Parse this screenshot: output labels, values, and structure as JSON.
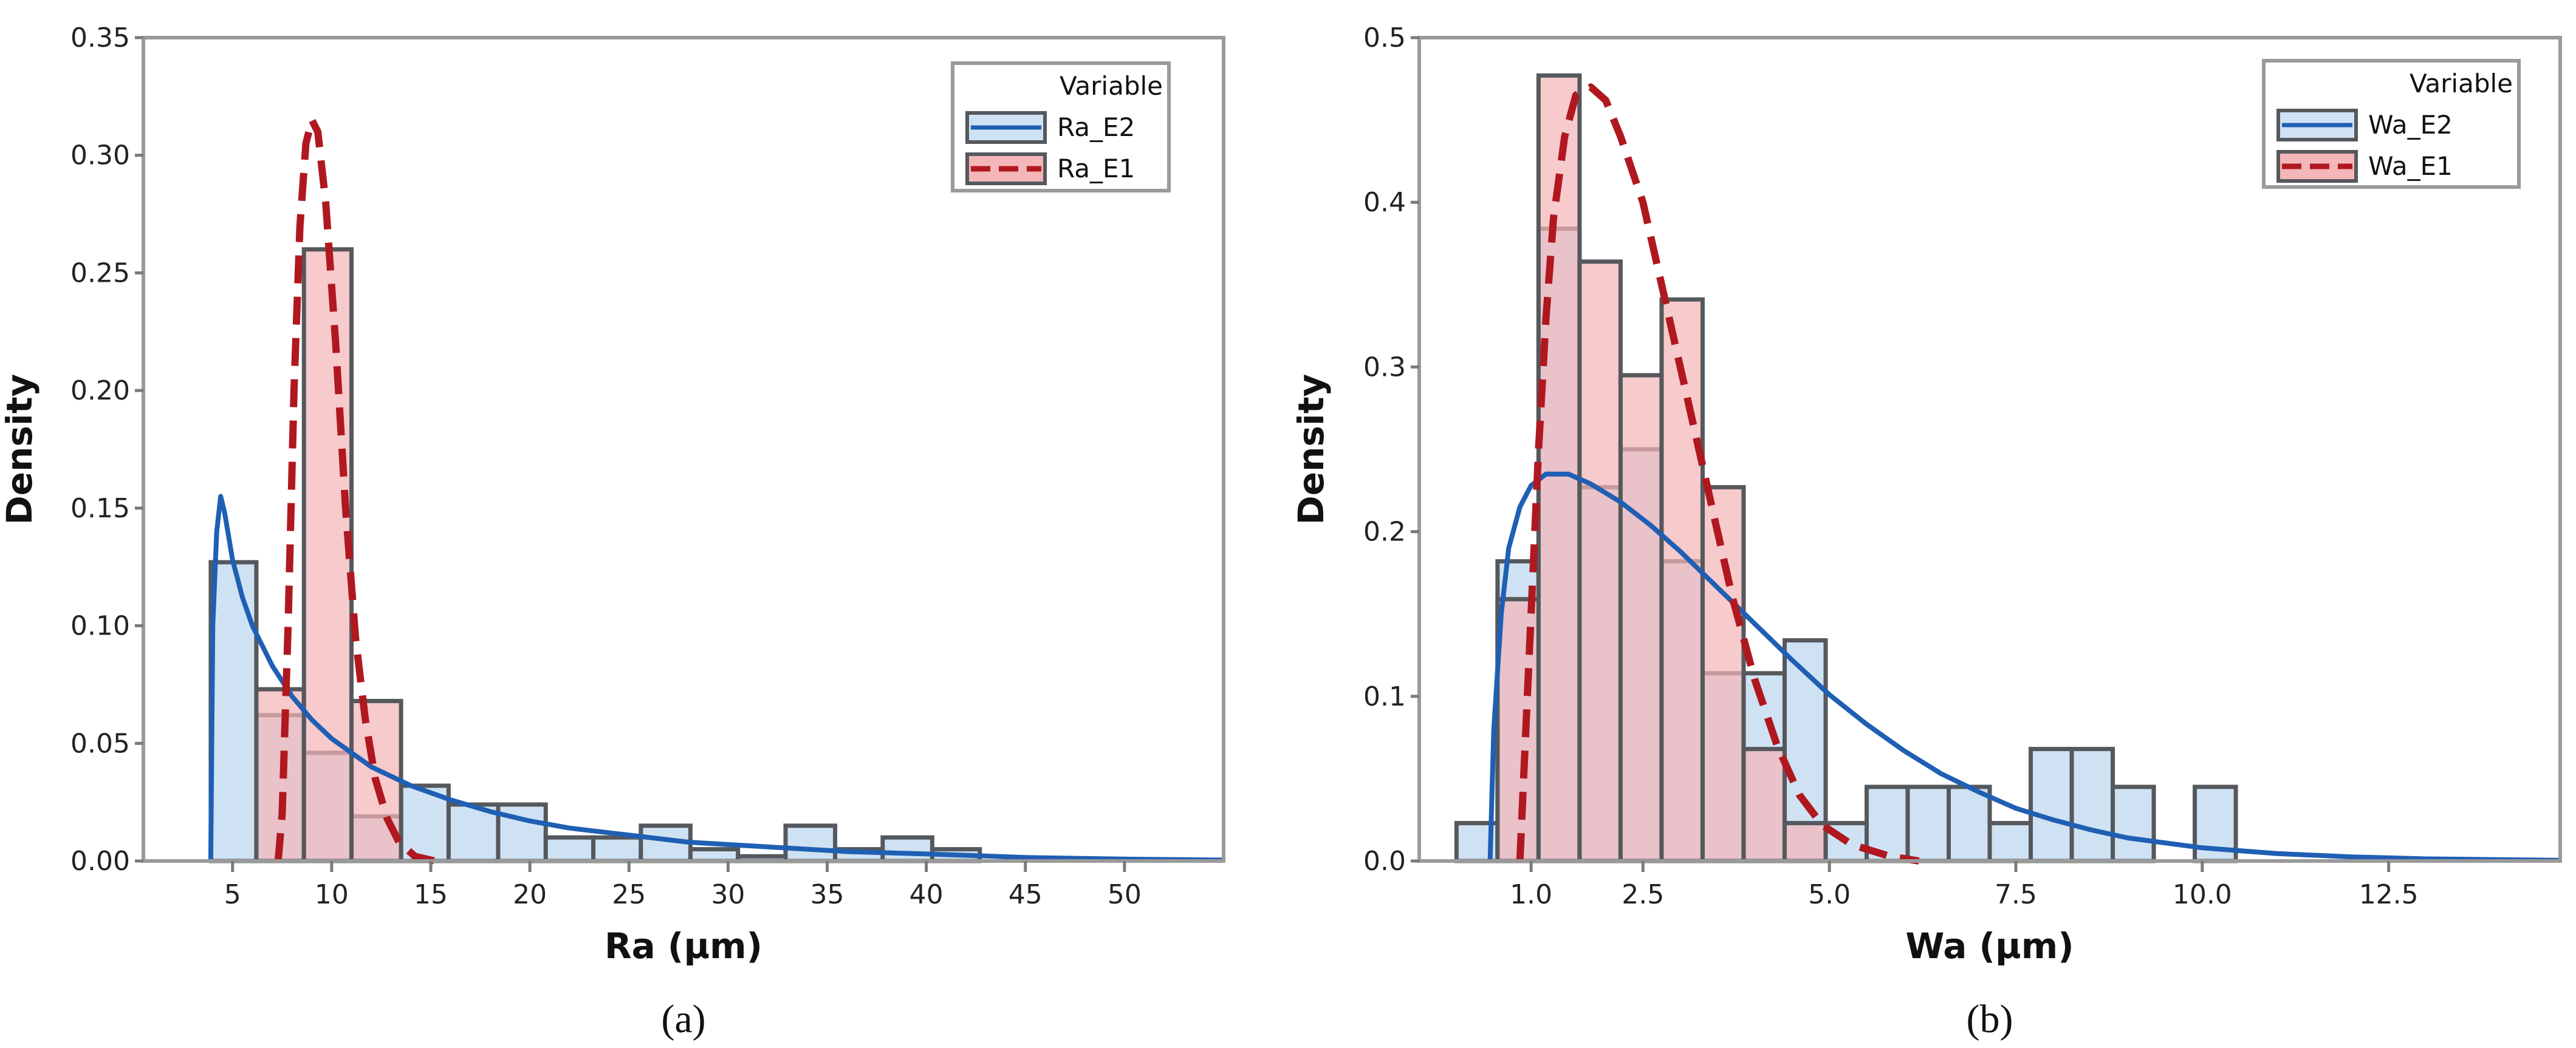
{
  "chart_data": [
    {
      "type": "histogram",
      "panel_label": "(a)",
      "xlabel": "Ra (µm)",
      "ylabel": "Density",
      "xlim": [
        0.5,
        55
      ],
      "ylim": [
        0,
        0.35
      ],
      "grid": false,
      "x_ticks": [
        {
          "value": 5,
          "label": "5"
        },
        {
          "value": 10,
          "label": "10"
        },
        {
          "value": 15,
          "label": "15"
        },
        {
          "value": 20,
          "label": "20"
        },
        {
          "value": 25,
          "label": "25"
        },
        {
          "value": 30,
          "label": "30"
        },
        {
          "value": 35,
          "label": "35"
        },
        {
          "value": 40,
          "label": "40"
        },
        {
          "value": 45,
          "label": "45"
        },
        {
          "value": 50,
          "label": "50"
        }
      ],
      "y_ticks": [
        {
          "value": 0,
          "label": "0.00"
        },
        {
          "value": 0.05,
          "label": "0.05"
        },
        {
          "value": 0.1,
          "label": "0.10"
        },
        {
          "value": 0.15,
          "label": "0.15"
        },
        {
          "value": 0.2,
          "label": "0.20"
        },
        {
          "value": 0.25,
          "label": "0.25"
        },
        {
          "value": 0.3,
          "label": "0.30"
        },
        {
          "value": 0.35,
          "label": "0.35"
        }
      ],
      "legend": {
        "title": "Variable",
        "position": "top-right",
        "entries": [
          "Ra_E2",
          "Ra_E1"
        ]
      },
      "series": [
        {
          "name": "Ra_E2",
          "line_style": "solid",
          "color_fill": "#cfe2f3",
          "color_line": "#1f5fb4",
          "bins": [
            {
              "x0": 3.9,
              "x1": 6.2,
              "density": 0.127
            },
            {
              "x0": 6.2,
              "x1": 8.6,
              "density": 0.062
            },
            {
              "x0": 8.6,
              "x1": 11.0,
              "density": 0.046
            },
            {
              "x0": 11.0,
              "x1": 13.5,
              "density": 0.019
            },
            {
              "x0": 13.5,
              "x1": 15.9,
              "density": 0.032
            },
            {
              "x0": 15.9,
              "x1": 18.4,
              "density": 0.024
            },
            {
              "x0": 18.4,
              "x1": 20.8,
              "density": 0.024
            },
            {
              "x0": 20.8,
              "x1": 23.2,
              "density": 0.01
            },
            {
              "x0": 23.2,
              "x1": 25.6,
              "density": 0.01
            },
            {
              "x0": 25.6,
              "x1": 28.1,
              "density": 0.015
            },
            {
              "x0": 28.1,
              "x1": 30.5,
              "density": 0.005
            },
            {
              "x0": 30.5,
              "x1": 32.9,
              "density": 0.002
            },
            {
              "x0": 32.9,
              "x1": 35.4,
              "density": 0.015
            },
            {
              "x0": 35.4,
              "x1": 37.8,
              "density": 0.005
            },
            {
              "x0": 37.8,
              "x1": 40.3,
              "density": 0.01
            },
            {
              "x0": 40.3,
              "x1": 42.7,
              "density": 0.005
            }
          ],
          "curve": [
            [
              3.9,
              0
            ],
            [
              4.0,
              0.1
            ],
            [
              4.2,
              0.14
            ],
            [
              4.4,
              0.155
            ],
            [
              4.6,
              0.148
            ],
            [
              5.0,
              0.128
            ],
            [
              5.5,
              0.112
            ],
            [
              6.0,
              0.1
            ],
            [
              7.0,
              0.083
            ],
            [
              8.0,
              0.07
            ],
            [
              9.0,
              0.06
            ],
            [
              10.0,
              0.052
            ],
            [
              12.0,
              0.04
            ],
            [
              14.0,
              0.032
            ],
            [
              16.0,
              0.026
            ],
            [
              18.0,
              0.021
            ],
            [
              20.0,
              0.017
            ],
            [
              22.0,
              0.014
            ],
            [
              25.0,
              0.011
            ],
            [
              28.0,
              0.008
            ],
            [
              32.0,
              0.006
            ],
            [
              36.0,
              0.004
            ],
            [
              40.0,
              0.003
            ],
            [
              45.0,
              0.0015
            ],
            [
              50.0,
              0.0008
            ],
            [
              55.0,
              0.0004
            ]
          ]
        },
        {
          "name": "Ra_E1",
          "line_style": "dashed",
          "color_fill": "#f4b6b8",
          "color_line": "#b01820",
          "bins": [
            {
              "x0": 6.2,
              "x1": 8.6,
              "density": 0.073
            },
            {
              "x0": 8.6,
              "x1": 11.0,
              "density": 0.26
            },
            {
              "x0": 11.0,
              "x1": 13.5,
              "density": 0.068
            }
          ],
          "curve": [
            [
              7.3,
              0.0
            ],
            [
              7.5,
              0.02
            ],
            [
              7.8,
              0.1
            ],
            [
              8.1,
              0.2
            ],
            [
              8.4,
              0.27
            ],
            [
              8.7,
              0.305
            ],
            [
              9.0,
              0.315
            ],
            [
              9.3,
              0.31
            ],
            [
              9.7,
              0.28
            ],
            [
              10.2,
              0.22
            ],
            [
              10.7,
              0.15
            ],
            [
              11.2,
              0.095
            ],
            [
              11.7,
              0.06
            ],
            [
              12.2,
              0.035
            ],
            [
              12.8,
              0.018
            ],
            [
              13.4,
              0.008
            ],
            [
              14.2,
              0.002
            ],
            [
              15.2,
              0.0
            ]
          ]
        }
      ]
    },
    {
      "type": "histogram",
      "panel_label": "(b)",
      "xlabel": "Wa (µm)",
      "ylabel": "Density",
      "xlim": [
        -0.5,
        14.8
      ],
      "ylim": [
        0,
        0.5
      ],
      "grid": false,
      "x_ticks": [
        {
          "value": 1.0,
          "label": "1.0"
        },
        {
          "value": 2.5,
          "label": "2.5"
        },
        {
          "value": 5.0,
          "label": "5.0"
        },
        {
          "value": 7.5,
          "label": "7.5"
        },
        {
          "value": 10.0,
          "label": "10.0"
        },
        {
          "value": 12.5,
          "label": "12.5"
        }
      ],
      "y_ticks": [
        {
          "value": 0,
          "label": "0.0"
        },
        {
          "value": 0.1,
          "label": "0.1"
        },
        {
          "value": 0.2,
          "label": "0.2"
        },
        {
          "value": 0.3,
          "label": "0.3"
        },
        {
          "value": 0.4,
          "label": "0.4"
        },
        {
          "value": 0.5,
          "label": "0.5"
        }
      ],
      "legend": {
        "title": "Variable",
        "position": "top-right",
        "entries": [
          "Wa_E2",
          "Wa_E1"
        ]
      },
      "series": [
        {
          "name": "Wa_E2",
          "line_style": "solid",
          "color_fill": "#cfe2f3",
          "color_line": "#1f5fb4",
          "bins": [
            {
              "x0": 0.0,
              "x1": 0.55,
              "density": 0.023
            },
            {
              "x0": 0.55,
              "x1": 1.1,
              "density": 0.182
            },
            {
              "x0": 1.1,
              "x1": 1.65,
              "density": 0.384
            },
            {
              "x0": 1.65,
              "x1": 2.2,
              "density": 0.227
            },
            {
              "x0": 2.2,
              "x1": 2.75,
              "density": 0.25
            },
            {
              "x0": 2.75,
              "x1": 3.3,
              "density": 0.182
            },
            {
              "x0": 3.3,
              "x1": 3.85,
              "density": 0.114
            },
            {
              "x0": 3.85,
              "x1": 4.4,
              "density": 0.114
            },
            {
              "x0": 4.4,
              "x1": 4.95,
              "density": 0.134
            },
            {
              "x0": 4.95,
              "x1": 5.5,
              "density": 0.023
            },
            {
              "x0": 5.5,
              "x1": 6.05,
              "density": 0.045
            },
            {
              "x0": 6.05,
              "x1": 6.6,
              "density": 0.045
            },
            {
              "x0": 6.6,
              "x1": 7.15,
              "density": 0.045
            },
            {
              "x0": 7.15,
              "x1": 7.7,
              "density": 0.023
            },
            {
              "x0": 7.7,
              "x1": 8.25,
              "density": 0.068
            },
            {
              "x0": 8.25,
              "x1": 8.8,
              "density": 0.068
            },
            {
              "x0": 8.8,
              "x1": 9.35,
              "density": 0.045
            },
            {
              "x0": 9.35,
              "x1": 9.9,
              "density": 0.0
            },
            {
              "x0": 9.9,
              "x1": 10.45,
              "density": 0.045
            }
          ],
          "curve": [
            [
              0.45,
              0.0
            ],
            [
              0.5,
              0.08
            ],
            [
              0.6,
              0.15
            ],
            [
              0.7,
              0.19
            ],
            [
              0.85,
              0.215
            ],
            [
              1.0,
              0.228
            ],
            [
              1.2,
              0.235
            ],
            [
              1.5,
              0.235
            ],
            [
              1.8,
              0.229
            ],
            [
              2.2,
              0.218
            ],
            [
              2.6,
              0.204
            ],
            [
              3.0,
              0.188
            ],
            [
              3.5,
              0.166
            ],
            [
              4.0,
              0.144
            ],
            [
              4.5,
              0.122
            ],
            [
              5.0,
              0.101
            ],
            [
              5.5,
              0.083
            ],
            [
              6.0,
              0.067
            ],
            [
              6.5,
              0.053
            ],
            [
              7.0,
              0.042
            ],
            [
              7.5,
              0.032
            ],
            [
              8.0,
              0.025
            ],
            [
              8.5,
              0.019
            ],
            [
              9.0,
              0.014
            ],
            [
              10.0,
              0.008
            ],
            [
              11.0,
              0.0045
            ],
            [
              12.0,
              0.0025
            ],
            [
              13.0,
              0.0013
            ],
            [
              14.8,
              0.0004
            ]
          ]
        },
        {
          "name": "Wa_E1",
          "line_style": "dashed",
          "color_fill": "#f4b6b8",
          "color_line": "#b01820",
          "bins": [
            {
              "x0": 0.55,
              "x1": 1.1,
              "density": 0.159
            },
            {
              "x0": 1.1,
              "x1": 1.65,
              "density": 0.477
            },
            {
              "x0": 1.65,
              "x1": 2.2,
              "density": 0.364
            },
            {
              "x0": 2.2,
              "x1": 2.75,
              "density": 0.295
            },
            {
              "x0": 2.75,
              "x1": 3.3,
              "density": 0.341
            },
            {
              "x0": 3.3,
              "x1": 3.85,
              "density": 0.227
            },
            {
              "x0": 3.85,
              "x1": 4.4,
              "density": 0.068
            },
            {
              "x0": 4.4,
              "x1": 4.95,
              "density": 0.023
            }
          ],
          "curve": [
            [
              0.85,
              0.0
            ],
            [
              0.9,
              0.05
            ],
            [
              1.0,
              0.15
            ],
            [
              1.1,
              0.25
            ],
            [
              1.2,
              0.33
            ],
            [
              1.3,
              0.39
            ],
            [
              1.45,
              0.44
            ],
            [
              1.6,
              0.465
            ],
            [
              1.8,
              0.47
            ],
            [
              2.0,
              0.462
            ],
            [
              2.2,
              0.44
            ],
            [
              2.5,
              0.4
            ],
            [
              2.8,
              0.34
            ],
            [
              3.1,
              0.28
            ],
            [
              3.4,
              0.22
            ],
            [
              3.7,
              0.16
            ],
            [
              4.0,
              0.11
            ],
            [
              4.3,
              0.07
            ],
            [
              4.6,
              0.04
            ],
            [
              4.9,
              0.022
            ],
            [
              5.3,
              0.01
            ],
            [
              5.8,
              0.003
            ],
            [
              6.2,
              0.0
            ]
          ]
        }
      ]
    }
  ]
}
